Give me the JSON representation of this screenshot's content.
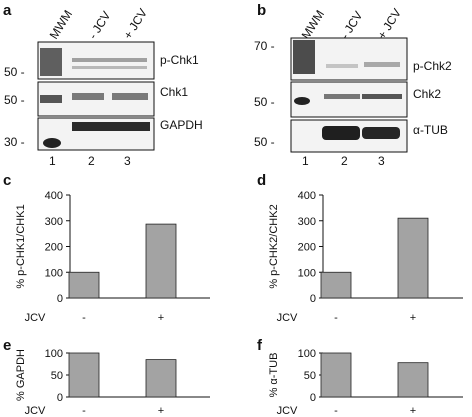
{
  "panels": {
    "a": {
      "letter": "a",
      "lanes": [
        "MWM",
        "- JCV",
        "+ JCV"
      ],
      "lane_numbers": [
        "1",
        "2",
        "3"
      ],
      "strips": [
        {
          "band": "p-Chk1",
          "marker": "50 -"
        },
        {
          "band": "Chk1",
          "marker": "50 -"
        },
        {
          "band": "GAPDH",
          "marker": "30 -"
        }
      ]
    },
    "b": {
      "letter": "b",
      "lanes": [
        "MWM",
        "- JCV",
        "+ JCV"
      ],
      "lane_numbers": [
        "1",
        "2",
        "3"
      ],
      "strips": [
        {
          "band": "p-Chk2",
          "marker": "70 -"
        },
        {
          "band": "Chk2",
          "marker": "50 -"
        },
        {
          "band": "α-TUB",
          "marker": "50 -"
        }
      ]
    }
  },
  "chart_data": [
    {
      "panel": "c",
      "type": "bar",
      "categories": [
        "-",
        "+"
      ],
      "values": [
        100,
        287
      ],
      "ylabel": "% p-CHK1/CHK1",
      "xlabel": "JCV",
      "ylim": [
        0,
        400
      ],
      "yticks": [
        "0",
        "100",
        "200",
        "300",
        "400"
      ]
    },
    {
      "panel": "d",
      "type": "bar",
      "categories": [
        "-",
        "+"
      ],
      "values": [
        100,
        310
      ],
      "ylabel": "% p-CHK2/CHK2",
      "xlabel": "JCV",
      "ylim": [
        0,
        400
      ],
      "yticks": [
        "0",
        "100",
        "200",
        "300",
        "400"
      ]
    },
    {
      "panel": "e",
      "type": "bar",
      "categories": [
        "-",
        "+"
      ],
      "values": [
        100,
        85
      ],
      "ylabel": "% GAPDH",
      "xlabel": "JCV",
      "ylim": [
        0,
        100
      ],
      "yticks": [
        "0",
        "50",
        "100"
      ]
    },
    {
      "panel": "f",
      "type": "bar",
      "categories": [
        "-",
        "+"
      ],
      "values": [
        100,
        78
      ],
      "ylabel": "% α-TUB",
      "xlabel": "JCV",
      "ylim": [
        0,
        100
      ],
      "yticks": [
        "0",
        "50",
        "100"
      ]
    }
  ]
}
